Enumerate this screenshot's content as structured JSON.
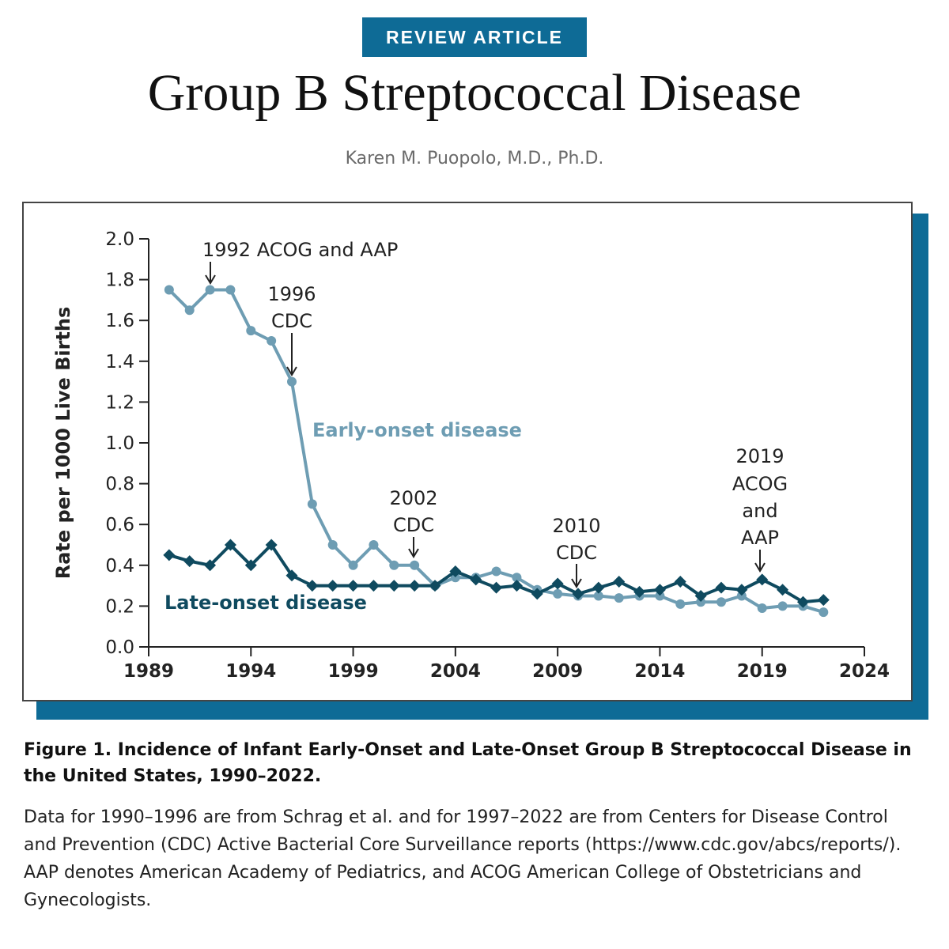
{
  "header": {
    "badge": "REVIEW ARTICLE",
    "title": "Group B Streptococcal Disease",
    "author": "Karen M. Puopolo, M.D., Ph.D."
  },
  "caption": {
    "title": "Figure 1. Incidence of Infant Early-Onset and Late-Onset Group B Streptococcal Disease in the United States, 1990–2022.",
    "body": "Data for 1990–1996 are from Schrag et al. and for 1997–2022 are from Centers for Disease Control and Prevention (CDC) Active Bacterial Core Surveillance reports (https://www.cdc.gov/abcs/reports/). AAP denotes American Academy of Pediatrics, and ACOG American College of Obstetricians and Gynecologists."
  },
  "colors": {
    "accent": "#0e6b96",
    "early": "#6e9db3",
    "late": "#0f4a5f"
  },
  "chart_data": {
    "type": "line",
    "title": "",
    "xlabel": "",
    "ylabel": "Rate per 1000 Live Births",
    "xlim": [
      1989,
      2024
    ],
    "ylim": [
      0.0,
      2.0
    ],
    "x_ticks": [
      1989,
      1994,
      1999,
      2004,
      2009,
      2014,
      2019,
      2024
    ],
    "x_tick_labels": [
      "1989",
      "1994",
      "1999",
      "2004",
      "2009",
      "2014",
      "2019",
      "2024"
    ],
    "y_ticks": [
      0.0,
      0.2,
      0.4,
      0.6,
      0.8,
      1.0,
      1.2,
      1.4,
      1.6,
      1.8,
      2.0
    ],
    "y_tick_labels": [
      "0.0",
      "0.2",
      "0.4",
      "0.6",
      "0.8",
      "1.0",
      "1.2",
      "1.4",
      "1.6",
      "1.8",
      "2.0"
    ],
    "grid": false,
    "x": [
      1990,
      1991,
      1992,
      1993,
      1994,
      1995,
      1996,
      1997,
      1998,
      1999,
      2000,
      2001,
      2002,
      2003,
      2004,
      2005,
      2006,
      2007,
      2008,
      2009,
      2010,
      2011,
      2012,
      2013,
      2014,
      2015,
      2016,
      2017,
      2018,
      2019,
      2020,
      2021,
      2022
    ],
    "series": [
      {
        "name": "Early-onset disease",
        "marker": "circle",
        "color": "#6e9db3",
        "values": [
          1.75,
          1.65,
          1.75,
          1.75,
          1.55,
          1.5,
          1.3,
          0.7,
          0.5,
          0.4,
          0.5,
          0.4,
          0.4,
          0.3,
          0.34,
          0.34,
          0.37,
          0.34,
          0.28,
          0.26,
          0.25,
          0.25,
          0.24,
          0.25,
          0.25,
          0.21,
          0.22,
          0.22,
          0.25,
          0.19,
          0.2,
          0.2,
          0.17
        ]
      },
      {
        "name": "Late-onset disease",
        "marker": "diamond",
        "color": "#0f4a5f",
        "values": [
          0.45,
          0.42,
          0.4,
          0.5,
          0.4,
          0.5,
          0.35,
          0.3,
          0.3,
          0.3,
          0.3,
          0.3,
          0.3,
          0.3,
          0.37,
          0.33,
          0.29,
          0.3,
          0.26,
          0.31,
          0.26,
          0.29,
          0.32,
          0.27,
          0.28,
          0.32,
          0.25,
          0.29,
          0.28,
          0.33,
          0.28,
          0.22,
          0.23
        ]
      }
    ],
    "annotations": [
      {
        "id": "ann-1992",
        "year": 1992,
        "lines": [
          "1992 ACOG and AAP"
        ]
      },
      {
        "id": "ann-1996",
        "year": 1996,
        "lines": [
          "1996",
          "CDC"
        ]
      },
      {
        "id": "ann-2002",
        "year": 2002,
        "lines": [
          "2002",
          "CDC"
        ]
      },
      {
        "id": "ann-2010",
        "year": 2010,
        "lines": [
          "2010",
          "CDC"
        ]
      },
      {
        "id": "ann-2019",
        "year": 2019,
        "lines": [
          "2019",
          "ACOG",
          "and",
          "AAP"
        ]
      }
    ]
  }
}
